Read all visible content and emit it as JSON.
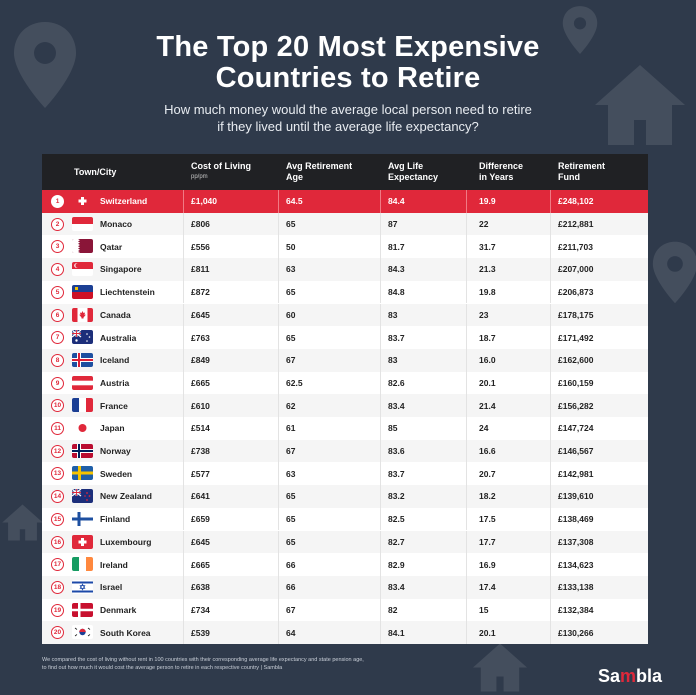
{
  "header": {
    "title_line1": "The Top 20 Most Expensive",
    "title_line2": "Countries to Retire",
    "subtitle_line1": "How much money would the average local person need to retire",
    "subtitle_line2": "if they lived until the average life expectancy?"
  },
  "table": {
    "columns": {
      "town": "Town/City",
      "cost": "Cost of Living",
      "cost_unit": "pp/pm",
      "age_line1": "Avg Retirement",
      "age_line2": "Age",
      "life_line1": "Avg Life",
      "life_line2": "Expectancy",
      "diff_line1": "Difference",
      "diff_line2": "in Years",
      "fund_line1": "Retirement",
      "fund_line2": "Fund"
    },
    "rows": [
      {
        "rank": "1",
        "country": "Switzerland",
        "cost": "£1,040",
        "age": "64.5",
        "life": "84.4",
        "diff": "19.9",
        "fund": "£248,102",
        "flag": "ch"
      },
      {
        "rank": "2",
        "country": "Monaco",
        "cost": "£806",
        "age": "65",
        "life": "87",
        "diff": "22",
        "fund": "£212,881",
        "flag": "mc"
      },
      {
        "rank": "3",
        "country": "Qatar",
        "cost": "£556",
        "age": "50",
        "life": "81.7",
        "diff": "31.7",
        "fund": "£211,703",
        "flag": "qa"
      },
      {
        "rank": "4",
        "country": "Singapore",
        "cost": "£811",
        "age": "63",
        "life": "84.3",
        "diff": "21.3",
        "fund": "£207,000",
        "flag": "sg"
      },
      {
        "rank": "5",
        "country": "Liechtenstein",
        "cost": "£872",
        "age": "65",
        "life": "84.8",
        "diff": "19.8",
        "fund": "£206,873",
        "flag": "li"
      },
      {
        "rank": "6",
        "country": "Canada",
        "cost": "£645",
        "age": "60",
        "life": "83",
        "diff": "23",
        "fund": "£178,175",
        "flag": "ca"
      },
      {
        "rank": "7",
        "country": "Australia",
        "cost": "£763",
        "age": "65",
        "life": "83.7",
        "diff": "18.7",
        "fund": "£171,492",
        "flag": "au"
      },
      {
        "rank": "8",
        "country": "Iceland",
        "cost": "£849",
        "age": "67",
        "life": "83",
        "diff": "16.0",
        "fund": "£162,600",
        "flag": "is"
      },
      {
        "rank": "9",
        "country": "Austria",
        "cost": "£665",
        "age": "62.5",
        "life": "82.6",
        "diff": "20.1",
        "fund": "£160,159",
        "flag": "at"
      },
      {
        "rank": "10",
        "country": "France",
        "cost": "£610",
        "age": "62",
        "life": "83.4",
        "diff": "21.4",
        "fund": "£156,282",
        "flag": "fr"
      },
      {
        "rank": "11",
        "country": "Japan",
        "cost": "£514",
        "age": "61",
        "life": "85",
        "diff": "24",
        "fund": "£147,724",
        "flag": "jp"
      },
      {
        "rank": "12",
        "country": "Norway",
        "cost": "£738",
        "age": "67",
        "life": "83.6",
        "diff": "16.6",
        "fund": "£146,567",
        "flag": "no"
      },
      {
        "rank": "13",
        "country": "Sweden",
        "cost": "£577",
        "age": "63",
        "life": "83.7",
        "diff": "20.7",
        "fund": "£142,981",
        "flag": "se"
      },
      {
        "rank": "14",
        "country": "New Zealand",
        "cost": "£641",
        "age": "65",
        "life": "83.2",
        "diff": "18.2",
        "fund": "£139,610",
        "flag": "nz"
      },
      {
        "rank": "15",
        "country": "Finland",
        "cost": "£659",
        "age": "65",
        "life": "82.5",
        "diff": "17.5",
        "fund": "£138,469",
        "flag": "fi"
      },
      {
        "rank": "16",
        "country": "Luxembourg",
        "cost": "£645",
        "age": "65",
        "life": "82.7",
        "diff": "17.7",
        "fund": "£137,308",
        "flag": "lu"
      },
      {
        "rank": "17",
        "country": "Ireland",
        "cost": "£665",
        "age": "66",
        "life": "82.9",
        "diff": "16.9",
        "fund": "£134,623",
        "flag": "ie"
      },
      {
        "rank": "18",
        "country": "Israel",
        "cost": "£638",
        "age": "66",
        "life": "83.4",
        "diff": "17.4",
        "fund": "£133,138",
        "flag": "il"
      },
      {
        "rank": "19",
        "country": "Denmark",
        "cost": "£734",
        "age": "67",
        "life": "82",
        "diff": "15",
        "fund": "£132,384",
        "flag": "dk"
      },
      {
        "rank": "20",
        "country": "South Korea",
        "cost": "£539",
        "age": "64",
        "life": "84.1",
        "diff": "20.1",
        "fund": "£130,266",
        "flag": "kr"
      }
    ]
  },
  "footer": {
    "note_line1": "We compared the cost of living without rent in 100 countries with their corresponding average life expectancy and state pension age,",
    "note_line2": "to find out how much it would cost the average person to retire in each respective country | Sambla",
    "logo_pre": "Sa",
    "logo_m": "m",
    "logo_post": "bla"
  },
  "colors": {
    "background": "#2f3a4b",
    "accent": "#e0283a",
    "header_row": "#202124"
  }
}
